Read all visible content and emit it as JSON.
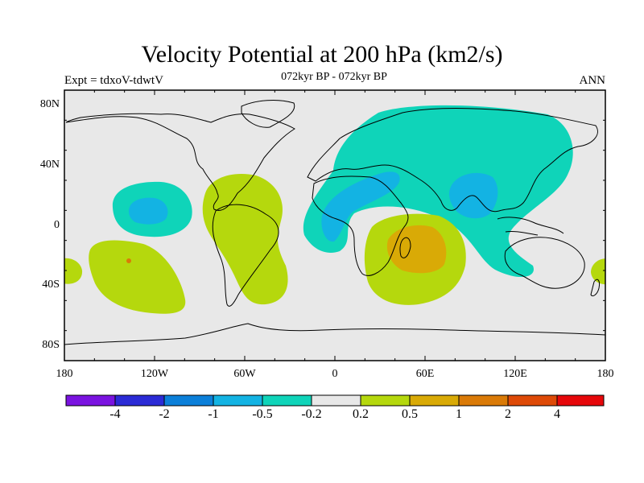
{
  "title": "Velocity Potential at 200 hPa (km2/s)",
  "subtitle": "072kyr BP - 072kyr BP",
  "left_label": "Expt = tdxoV-tdwtV",
  "right_label": "ANN",
  "lat_labels": [
    "80N",
    "40N",
    "0",
    "40S",
    "80S"
  ],
  "lon_labels": [
    "180",
    "120W",
    "60W",
    "0",
    "60E",
    "120E",
    "180"
  ],
  "colorbar": {
    "colors": [
      "#7a13e0",
      "#2b2bd6",
      "#0b7fd9",
      "#13b3e3",
      "#0fd4b9",
      "#e8e8e8",
      "#b5d80d",
      "#d9aa06",
      "#da7a07",
      "#de4a07",
      "#e6070a"
    ],
    "ticks": [
      "-4",
      "-2",
      "-1",
      "-0.5",
      "-0.2",
      "0.2",
      "0.5",
      "1",
      "2",
      "4"
    ]
  },
  "colors": {
    "background": "#e8e8e8",
    "neg_weak": "#0fd4b9",
    "neg_moderate": "#13b3e3",
    "pos_weak": "#b5d80d",
    "pos_moderate": "#d9aa06",
    "pos_strong": "#da7a07"
  }
}
